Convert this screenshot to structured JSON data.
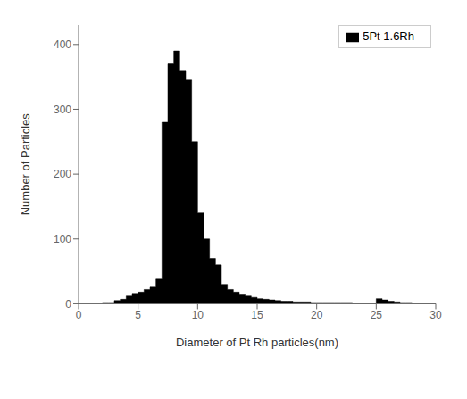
{
  "chart_data": {
    "type": "histogram",
    "xlabel": "Diameter of Pt Rh particles(nm)",
    "ylabel": "Number of Particles",
    "bins": [
      2.0,
      2.5,
      3.0,
      3.5,
      4.0,
      4.5,
      5.0,
      5.5,
      6.0,
      6.5,
      7.0,
      7.5,
      8.0,
      8.5,
      9.0,
      9.5,
      10.0,
      10.5,
      11.0,
      11.5,
      12.0,
      12.5,
      13.0,
      13.5,
      14.0,
      14.5,
      15.0,
      15.5,
      16.0,
      16.5,
      17.0,
      17.5,
      18.0,
      18.5,
      19.0,
      19.5,
      20.0,
      20.5,
      21.0,
      21.5,
      22.0,
      22.5,
      23.0,
      23.5,
      24.0,
      24.5,
      25.0,
      25.5,
      26.0,
      26.5,
      27.0,
      27.5,
      28.0,
      28.5,
      29.0,
      29.5,
      30.0
    ],
    "series": [
      {
        "name": "5Pt 1.6Rh",
        "color": "#000000",
        "values": [
          2,
          2,
          5,
          7,
          12,
          16,
          18,
          22,
          27,
          38,
          280,
          370,
          390,
          360,
          345,
          250,
          140,
          100,
          70,
          60,
          30,
          22,
          18,
          15,
          12,
          10,
          8,
          7,
          6,
          5,
          4,
          4,
          3,
          3,
          3,
          2,
          2,
          2,
          2,
          2,
          2,
          2,
          1,
          1,
          1,
          1,
          8,
          6,
          4,
          3,
          2,
          2,
          1,
          1,
          1,
          1
        ]
      }
    ],
    "xlim": [
      0,
      30
    ],
    "ylim": [
      0,
      430
    ],
    "xticks": [
      0,
      5,
      10,
      15,
      20,
      25,
      30
    ],
    "yticks": [
      0,
      100,
      200,
      300,
      400
    ],
    "legend": "upper right"
  }
}
